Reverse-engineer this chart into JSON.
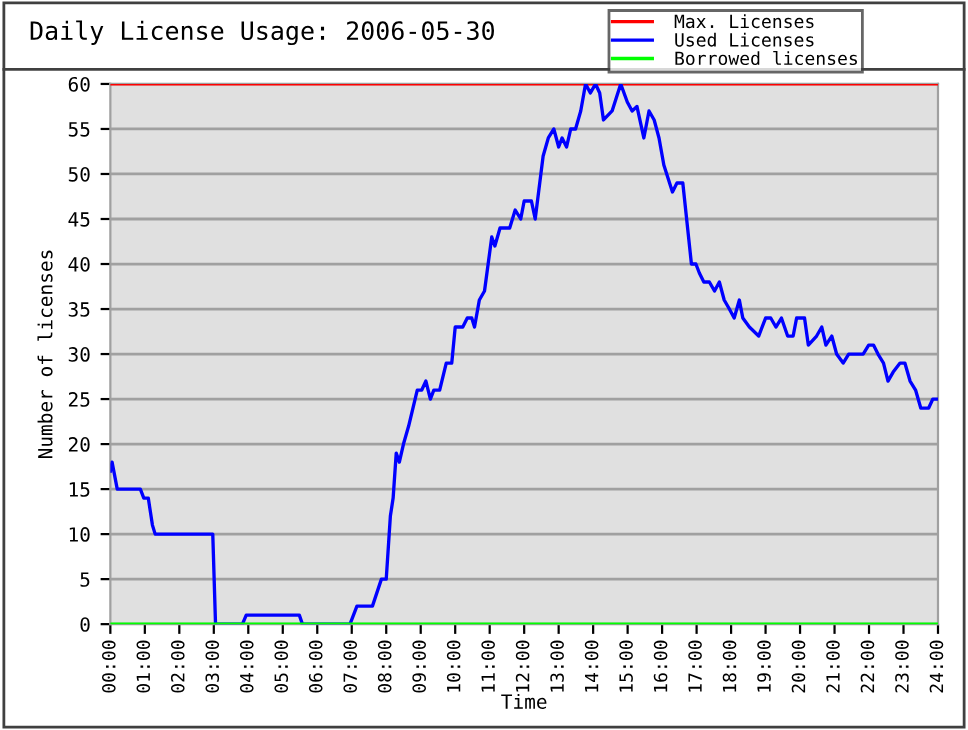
{
  "chart_data": {
    "type": "line",
    "title": "Daily License Usage: 2006-05-30",
    "xlabel": "Time",
    "ylabel": "Number of licenses",
    "xlim": [
      0,
      24
    ],
    "ylim": [
      0,
      60
    ],
    "xticks": [
      {
        "value": 0,
        "label": "00:00"
      },
      {
        "value": 1,
        "label": "01:00"
      },
      {
        "value": 2,
        "label": "02:00"
      },
      {
        "value": 3,
        "label": "03:00"
      },
      {
        "value": 4,
        "label": "04:00"
      },
      {
        "value": 5,
        "label": "05:00"
      },
      {
        "value": 6,
        "label": "06:00"
      },
      {
        "value": 7,
        "label": "07:00"
      },
      {
        "value": 8,
        "label": "08:00"
      },
      {
        "value": 9,
        "label": "09:00"
      },
      {
        "value": 10,
        "label": "10:00"
      },
      {
        "value": 11,
        "label": "11:00"
      },
      {
        "value": 12,
        "label": "12:00"
      },
      {
        "value": 13,
        "label": "13:00"
      },
      {
        "value": 14,
        "label": "14:00"
      },
      {
        "value": 15,
        "label": "15:00"
      },
      {
        "value": 16,
        "label": "16:00"
      },
      {
        "value": 17,
        "label": "17:00"
      },
      {
        "value": 18,
        "label": "18:00"
      },
      {
        "value": 19,
        "label": "19:00"
      },
      {
        "value": 20,
        "label": "20:00"
      },
      {
        "value": 21,
        "label": "21:00"
      },
      {
        "value": 22,
        "label": "22:00"
      },
      {
        "value": 23,
        "label": "23:00"
      },
      {
        "value": 24,
        "label": "24:00"
      }
    ],
    "yticks": [
      0,
      5,
      10,
      15,
      20,
      25,
      30,
      35,
      40,
      45,
      50,
      55,
      60
    ],
    "grid": "y",
    "legend": "top",
    "marker": "none",
    "line_style": "solid",
    "series": [
      {
        "name": "Max. Licenses",
        "color": "#ff0000",
        "x": [
          0,
          24
        ],
        "values": [
          60,
          60
        ]
      },
      {
        "name": "Used Licenses",
        "color": "#0000ff",
        "x": [
          0,
          0.05,
          0.2,
          0.87,
          0.97,
          1.1,
          1.22,
          1.3,
          2.97,
          3.05,
          3.83,
          3.94,
          5.48,
          5.57,
          6.95,
          7.15,
          7.6,
          7.86,
          8.0,
          8.12,
          8.2,
          8.29,
          8.38,
          8.5,
          8.65,
          8.9,
          9.03,
          9.15,
          9.28,
          9.38,
          9.55,
          9.74,
          9.9,
          10.0,
          10.22,
          10.35,
          10.48,
          10.56,
          10.7,
          10.85,
          11.06,
          11.15,
          11.3,
          11.58,
          11.74,
          11.9,
          12.0,
          12.21,
          12.32,
          12.55,
          12.7,
          12.86,
          13.0,
          13.1,
          13.23,
          13.35,
          13.49,
          13.64,
          13.78,
          13.92,
          14.07,
          14.19,
          14.3,
          14.55,
          14.8,
          14.99,
          15.13,
          15.27,
          15.47,
          15.62,
          15.77,
          15.91,
          16.05,
          16.3,
          16.43,
          16.6,
          16.85,
          16.98,
          17.08,
          17.21,
          17.37,
          17.52,
          17.66,
          17.8,
          17.95,
          18.09,
          18.24,
          18.34,
          18.53,
          18.8,
          19.0,
          19.15,
          19.3,
          19.46,
          19.64,
          19.8,
          19.9,
          20.13,
          20.24,
          20.48,
          20.63,
          20.75,
          20.92,
          21.06,
          21.25,
          21.41,
          21.83,
          21.99,
          22.13,
          22.26,
          22.42,
          22.55,
          22.7,
          22.9,
          23.04,
          23.19,
          23.35,
          23.5,
          23.73,
          23.85,
          24
        ],
        "values": [
          17,
          18,
          15,
          15,
          14,
          14,
          11,
          10,
          10,
          0,
          0,
          1,
          1,
          0,
          0,
          2,
          2,
          5,
          5,
          12,
          14,
          19,
          18,
          20,
          22,
          26,
          26,
          27,
          25,
          26,
          26,
          29,
          29,
          33,
          33,
          34,
          34,
          33,
          36,
          37,
          43,
          42,
          44,
          44,
          46,
          45,
          47,
          47,
          45,
          52,
          54,
          55,
          53,
          54,
          53,
          55,
          55,
          57,
          60,
          59,
          60,
          59,
          56,
          57,
          60,
          58,
          57,
          57.5,
          54,
          57,
          56,
          54,
          51,
          48,
          49,
          49,
          40,
          40,
          39,
          38,
          38,
          37,
          38,
          36,
          35,
          34,
          36,
          34,
          33,
          32,
          34,
          34,
          33,
          34,
          32,
          32,
          34,
          34,
          31,
          32,
          33,
          31,
          32,
          30,
          29,
          30,
          30,
          31,
          31,
          30,
          29,
          27,
          28,
          29,
          29,
          27,
          26,
          24,
          24,
          25,
          25
        ]
      },
      {
        "name": "Borrowed licenses",
        "color": "#00ff00",
        "x": [
          0,
          24
        ],
        "values": [
          0,
          0
        ]
      }
    ]
  }
}
